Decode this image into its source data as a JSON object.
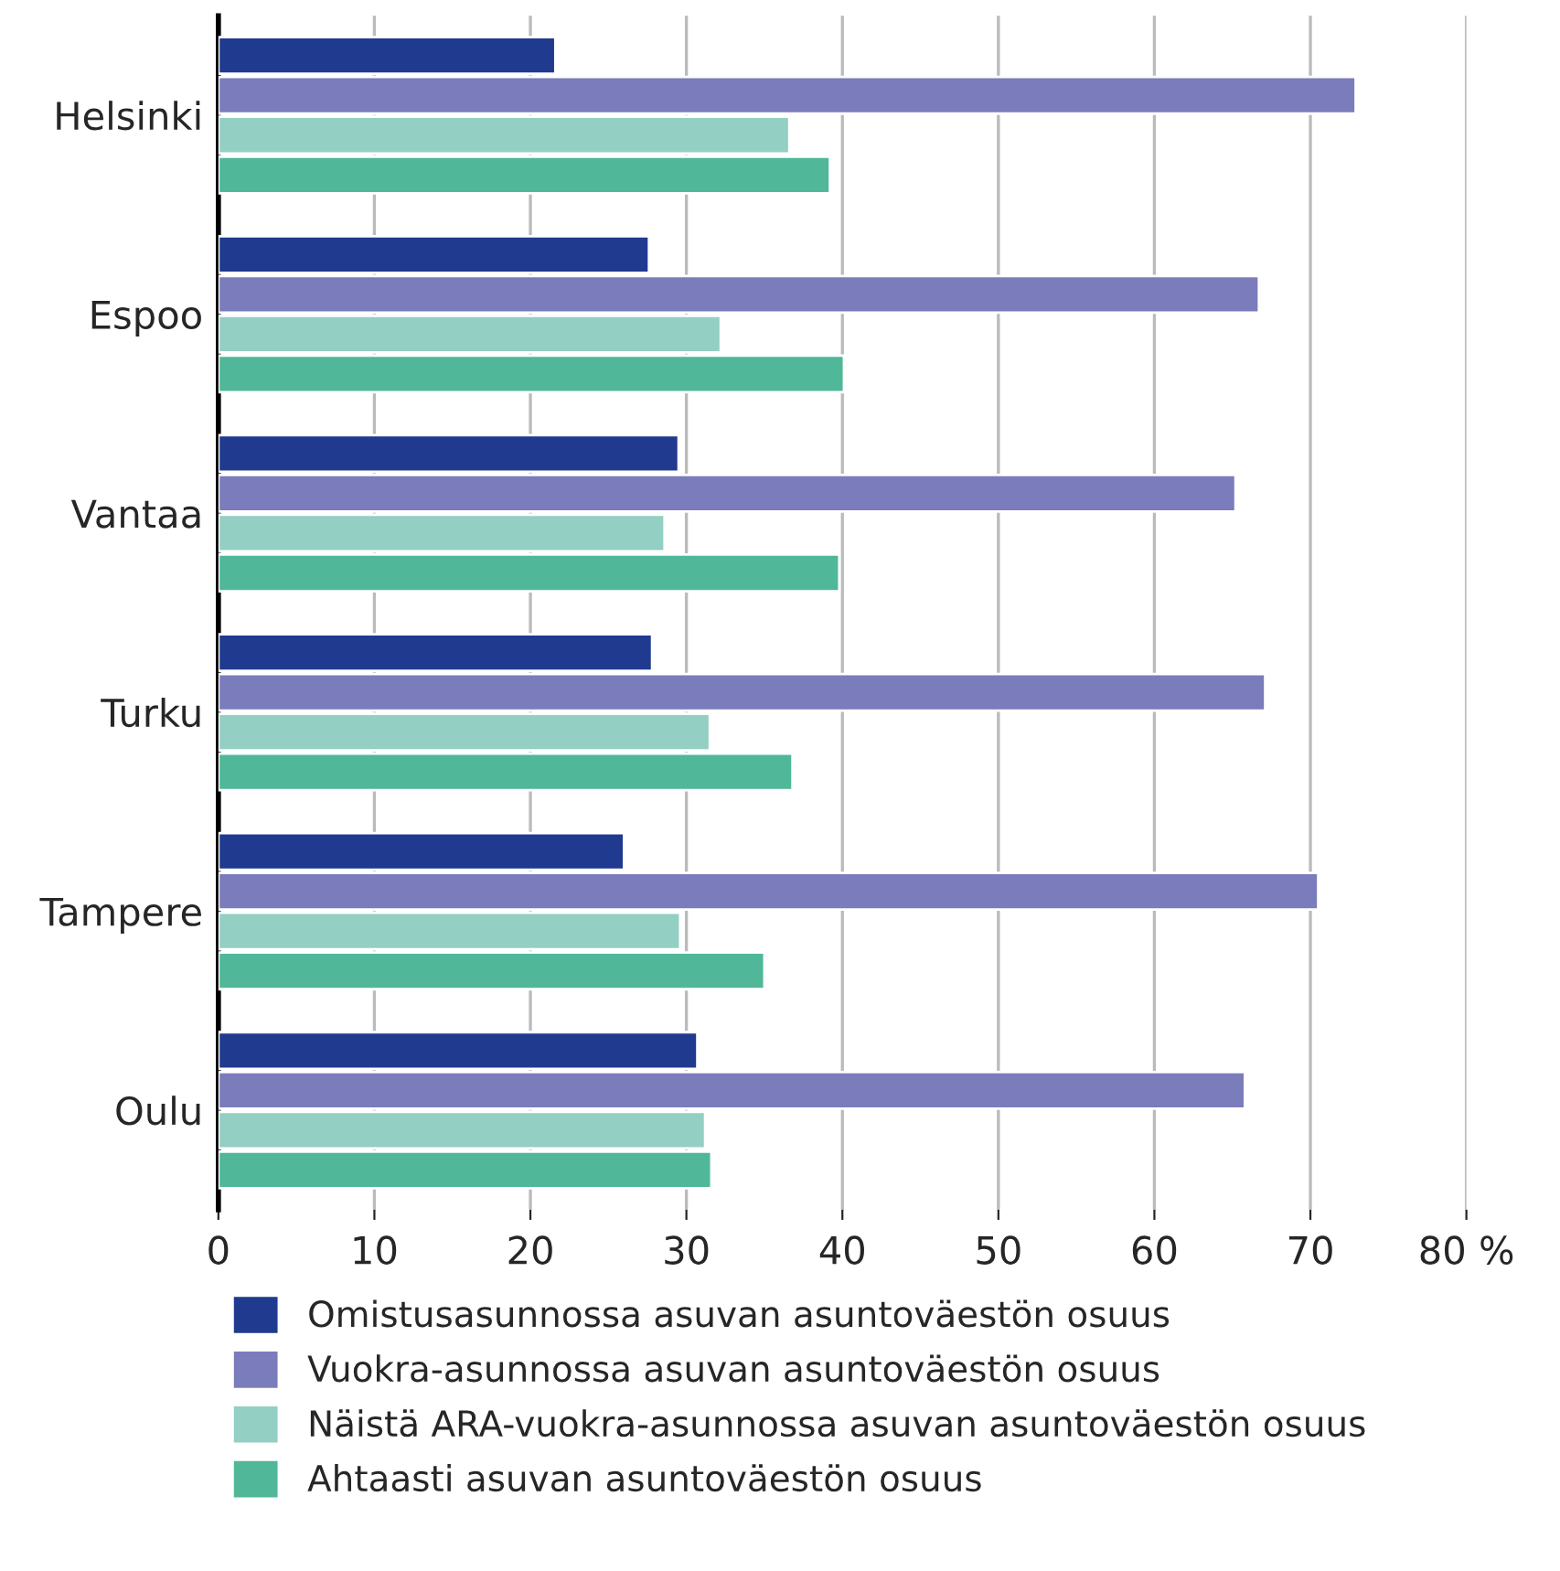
{
  "chart_data": {
    "type": "bar",
    "orientation": "horizontal",
    "categories": [
      "Helsinki",
      "Espoo",
      "Vantaa",
      "Turku",
      "Tampere",
      "Oulu"
    ],
    "series": [
      {
        "name": "Omistusasunnossa asuvan asuntoväestön osuus",
        "color": "#1f3a8f",
        "values": [
          21.6,
          27.6,
          29.5,
          27.8,
          26.0,
          30.7
        ]
      },
      {
        "name": "Vuokra-asunnossa asuvan asuntoväestön osuus",
        "color": "#7a7cbb",
        "values": [
          72.9,
          66.7,
          65.2,
          67.1,
          70.5,
          65.8
        ]
      },
      {
        "name": "Näistä ARA-vuokra-asunnossa asuvan asuntoväestön osuus",
        "color": "#93cfc3",
        "values": [
          36.6,
          32.2,
          28.6,
          31.5,
          29.6,
          31.2
        ]
      },
      {
        "name": "Ahtaasti asuvan asuntoväestön osuus",
        "color": "#50b799",
        "values": [
          39.2,
          40.1,
          39.8,
          36.8,
          35.0,
          31.6
        ]
      }
    ],
    "xlim": [
      0,
      80
    ],
    "xticks": [
      0,
      10,
      20,
      30,
      40,
      50,
      60,
      70,
      {
        "value": 80,
        "label": "80 %"
      }
    ],
    "grid": "x",
    "legend": "bottom"
  }
}
